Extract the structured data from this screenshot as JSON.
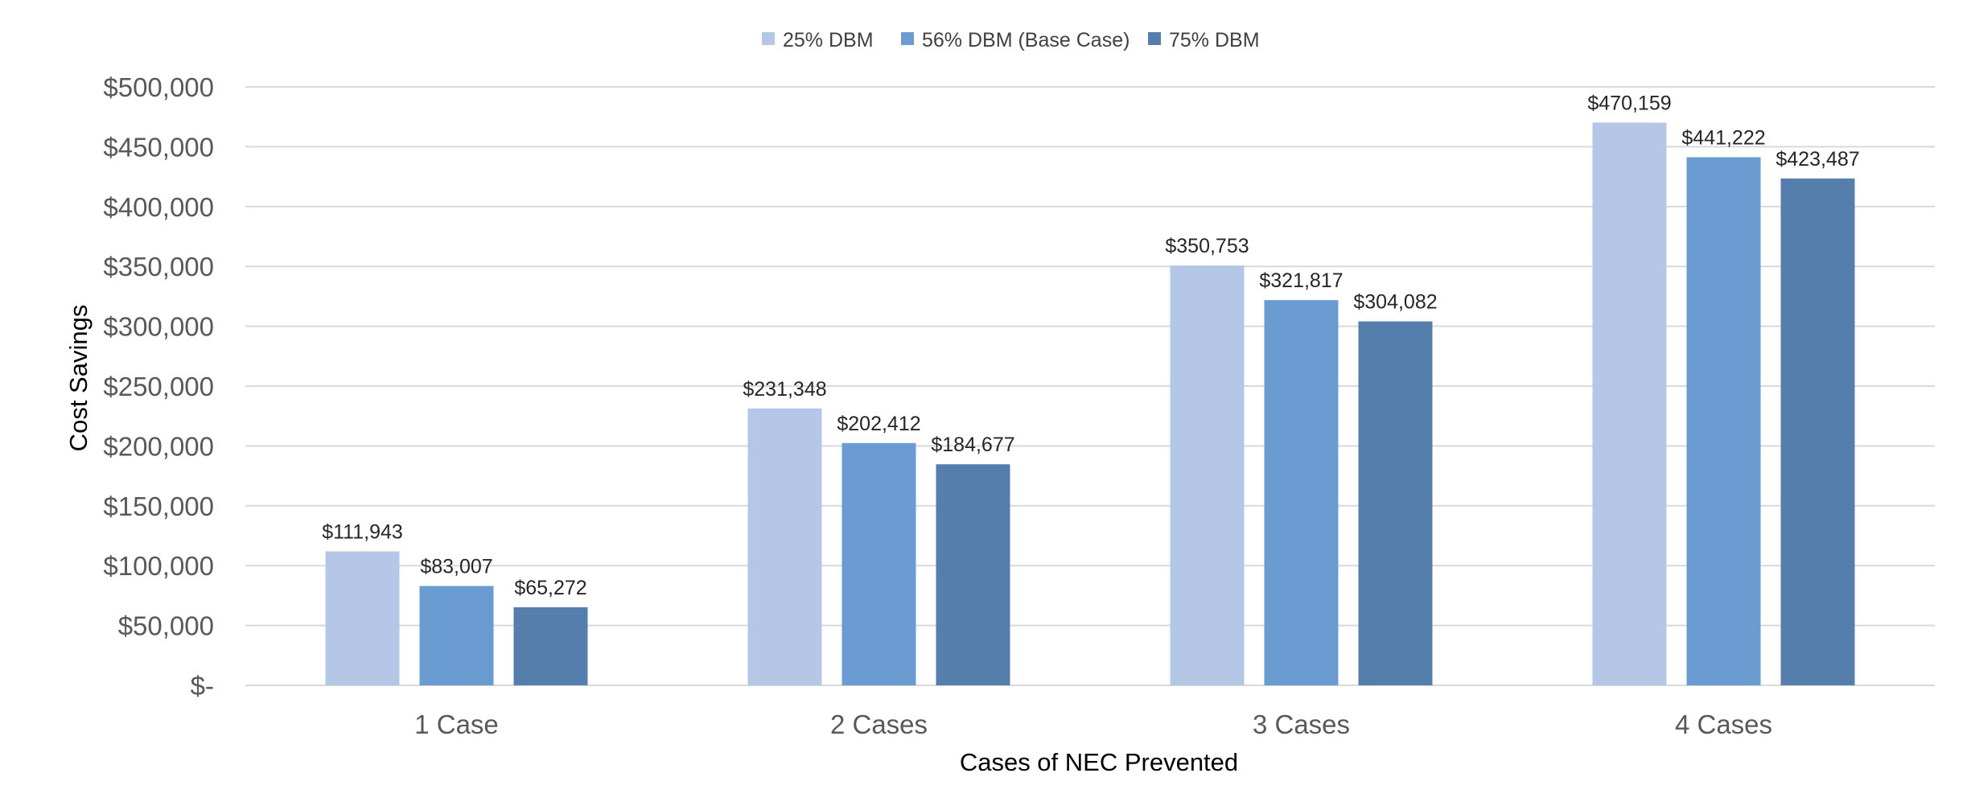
{
  "chart_data": {
    "type": "bar",
    "categories": [
      "1 Case",
      "2 Cases",
      "3 Cases",
      "4 Cases"
    ],
    "series": [
      {
        "name": "25% DBM",
        "values": [
          111943,
          231348,
          350753,
          470159
        ],
        "labels": [
          "$111,943",
          "$231,348",
          "$350,753",
          "$470,159"
        ],
        "color": "#b4c7e7"
      },
      {
        "name": "56% DBM (Base Case)",
        "values": [
          83007,
          202412,
          321817,
          441222
        ],
        "labels": [
          "$83,007",
          "$202,412",
          "$321,817",
          "$441,222"
        ],
        "color": "#6a9bd1"
      },
      {
        "name": "75% DBM",
        "values": [
          65272,
          184677,
          304082,
          423487
        ],
        "labels": [
          "$65,272",
          "$184,677",
          "$304,082",
          "$423,487"
        ],
        "color": "#557eac"
      }
    ],
    "xlabel": "Cases of NEC Prevented",
    "ylabel": "Cost Savings",
    "ylim": [
      0,
      500000
    ],
    "yticks": [
      0,
      50000,
      100000,
      150000,
      200000,
      250000,
      300000,
      350000,
      400000,
      450000,
      500000
    ],
    "ytick_labels": [
      "$-",
      "$50,000",
      "$100,000",
      "$150,000",
      "$200,000",
      "$250,000",
      "$300,000",
      "$350,000",
      "$400,000",
      "$450,000",
      "$500,000"
    ],
    "grid": true,
    "legend_position": "top-center",
    "gridline_color": "#d9d9d9"
  }
}
